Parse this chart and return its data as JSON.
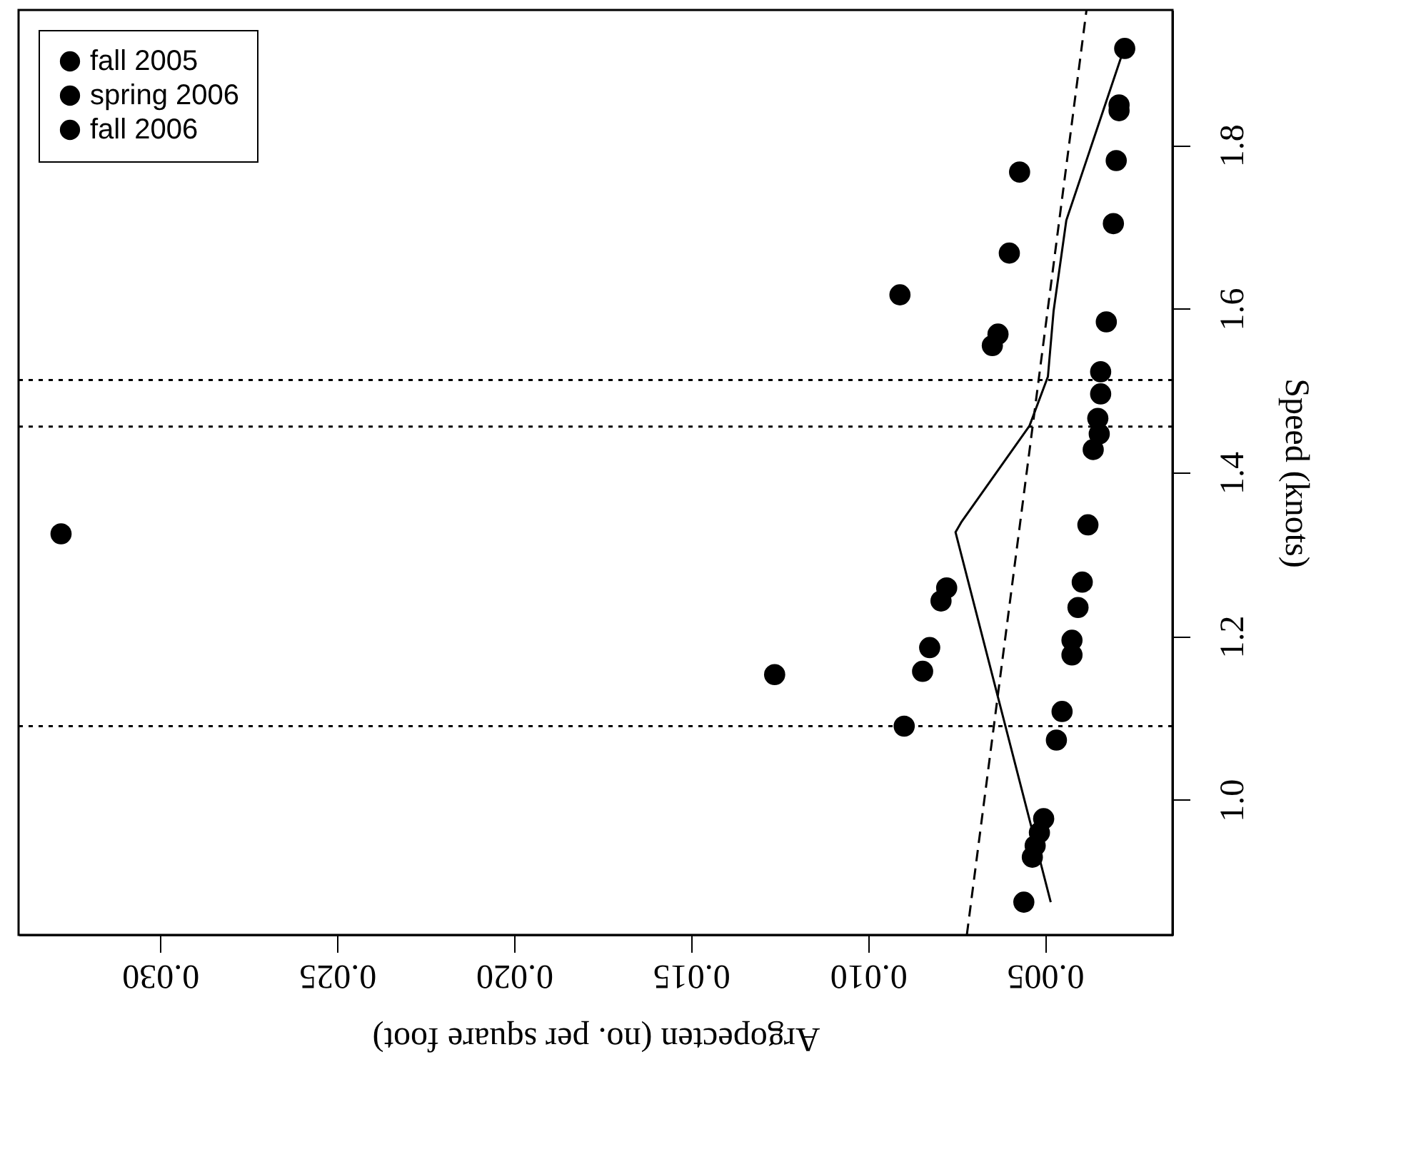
{
  "chart_data": {
    "type": "scatter",
    "xlabel": "Argopecten (no. per square foot)",
    "ylabel": "Speed (knots)",
    "xlim": [
      0.034,
      0.0014
    ],
    "xticks": [
      {
        "value": 0.03,
        "label": "0.030"
      },
      0.025,
      {
        "value": 0.02,
        "label": "0.020"
      },
      0.015,
      {
        "value": 0.01,
        "label": "0.010"
      },
      0.005
    ],
    "ylim": [
      0.835,
      1.965
    ],
    "yticks": [
      {
        "value": 1.0,
        "label": "1.0"
      },
      1.2,
      1.4,
      1.6,
      1.8
    ],
    "legend": "top left",
    "grid": false,
    "marker": "circle",
    "series": [
      {
        "name": "fall 2005",
        "color": "#000000"
      },
      {
        "name": "spring 2006",
        "color": "#000000"
      },
      {
        "name": "fall 2006",
        "color": "#000000"
      },
      {
        "color": "#000000",
        "x": [
          0.00275,
          0.00291,
          0.00291,
          0.00299,
          0.00307,
          0.00572,
          0.00601,
          0.0091,
          0.00633,
          0.00649,
          0.00327,
          0.00343,
          0.00343,
          0.00351,
          0.00347,
          0.00364,
          0.00379,
          0.00395,
          0.00407,
          0.00424,
          0.00424,
          0.00452,
          0.00468,
          0.00504,
          0.00516,
          0.00528,
          0.00536,
          0.0056,
          0.00778,
          0.00794,
          0.00826,
          0.00846,
          0.00898,
          0.01264,
          0.0328
        ],
        "values": [
          1.918,
          1.849,
          1.842,
          1.781,
          1.704,
          1.767,
          1.668,
          1.617,
          1.569,
          1.555,
          1.584,
          1.523,
          1.496,
          1.466,
          1.447,
          1.428,
          1.336,
          1.266,
          1.235,
          1.195,
          1.177,
          1.108,
          1.073,
          0.977,
          0.96,
          0.944,
          0.93,
          0.875,
          1.259,
          1.243,
          1.186,
          1.157,
          1.09,
          1.153,
          1.325
        ]
      },
      {
        "type": "line",
        "color": "#000000",
        "line_style": "solid",
        "marker": "none",
        "x": [
          0.00484,
          0.00753,
          0.00737,
          0.00544,
          0.00492,
          0.00476,
          0.0044,
          0.00283
        ],
        "values": [
          0.875,
          1.327,
          1.339,
          1.457,
          1.517,
          1.597,
          1.708,
          1.91
        ]
      },
      {
        "type": "line",
        "color": "#000000",
        "line_style": "dashed",
        "marker": "none",
        "x": [
          0.00721,
          0.00383
        ],
        "values": [
          0.835,
          1.965
        ]
      }
    ],
    "ref_lines": [
      {
        "axis": "y",
        "value": 1.09,
        "line_style": "dotted",
        "color": "#000000"
      },
      {
        "axis": "y",
        "value": 1.456,
        "line_style": "dotted",
        "color": "#000000"
      },
      {
        "axis": "y",
        "value": 1.513,
        "line_style": "dotted",
        "color": "#000000"
      }
    ]
  }
}
